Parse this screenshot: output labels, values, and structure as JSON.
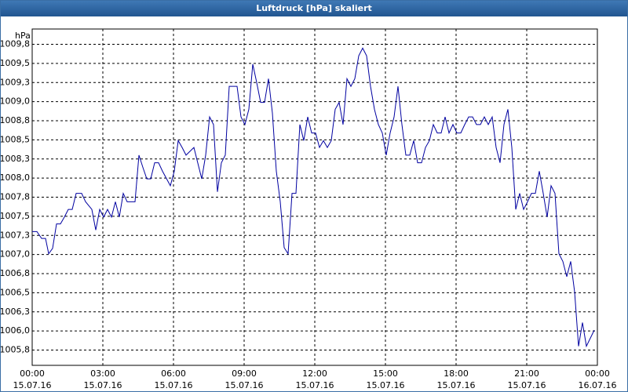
{
  "chart_data": {
    "type": "line",
    "title": "Luftdruck [hPa] skaliert",
    "y_label": "hPa",
    "x": [
      0,
      12,
      24,
      34,
      42,
      52,
      62,
      72,
      82,
      92,
      102,
      112,
      126,
      136,
      152,
      162,
      172,
      182,
      192,
      202,
      212,
      222,
      232,
      242,
      262,
      272,
      282,
      292,
      302,
      312,
      322,
      332,
      352,
      362,
      372,
      382,
      392,
      402,
      412,
      432,
      442,
      452,
      462,
      472,
      482,
      492,
      502,
      522,
      532,
      542,
      552,
      562,
      572,
      582,
      592,
      602,
      612,
      622,
      632,
      642,
      652,
      662,
      672,
      682,
      692,
      702,
      712,
      722,
      732,
      742,
      752,
      762,
      772,
      782,
      792,
      802,
      812,
      822,
      832,
      842,
      852,
      862,
      872,
      882,
      892,
      902,
      912,
      922,
      932,
      942,
      952,
      962,
      972,
      982,
      992,
      1002,
      1012,
      1022,
      1032,
      1042,
      1052,
      1062,
      1072,
      1082,
      1092,
      1102,
      1112,
      1122,
      1132,
      1142,
      1152,
      1162,
      1172,
      1182,
      1192,
      1202,
      1212,
      1222,
      1232,
      1242,
      1252,
      1262,
      1272,
      1282,
      1292,
      1302,
      1312,
      1322,
      1332,
      1342,
      1352,
      1362,
      1372,
      1382,
      1392,
      1402,
      1412,
      1432
    ],
    "values": [
      1007.3,
      1007.3,
      1007.21,
      1007.21,
      1007.01,
      1007.08,
      1007.4,
      1007.4,
      1007.49,
      1007.59,
      1007.59,
      1007.8,
      1007.8,
      1007.69,
      1007.59,
      1007.32,
      1007.59,
      1007.49,
      1007.59,
      1007.49,
      1007.69,
      1007.49,
      1007.8,
      1007.69,
      1007.69,
      1008.3,
      1008.14,
      1007.99,
      1007.99,
      1008.2,
      1008.2,
      1008.09,
      1007.9,
      1008.09,
      1008.49,
      1008.4,
      1008.3,
      1008.35,
      1008.4,
      1007.99,
      1008.3,
      1008.8,
      1008.7,
      1007.82,
      1008.2,
      1008.3,
      1009.2,
      1009.2,
      1008.8,
      1008.7,
      1008.9,
      1009.49,
      1009.25,
      1008.99,
      1008.99,
      1009.3,
      1008.85,
      1008.09,
      1007.69,
      1007.09,
      1007.01,
      1007.8,
      1007.8,
      1008.7,
      1008.49,
      1008.8,
      1008.59,
      1008.59,
      1008.4,
      1008.49,
      1008.4,
      1008.49,
      1008.9,
      1008.99,
      1008.7,
      1009.3,
      1009.2,
      1009.3,
      1009.6,
      1009.7,
      1009.6,
      1009.2,
      1008.9,
      1008.7,
      1008.59,
      1008.3,
      1008.59,
      1008.8,
      1009.2,
      1008.7,
      1008.3,
      1008.3,
      1008.49,
      1008.2,
      1008.2,
      1008.4,
      1008.49,
      1008.7,
      1008.59,
      1008.59,
      1008.8,
      1008.59,
      1008.7,
      1008.59,
      1008.59,
      1008.7,
      1008.8,
      1008.8,
      1008.7,
      1008.7,
      1008.8,
      1008.7,
      1008.8,
      1008.4,
      1008.2,
      1008.7,
      1008.9,
      1008.4,
      1007.59,
      1007.8,
      1007.59,
      1007.69,
      1007.8,
      1007.8,
      1008.09,
      1007.8,
      1007.49,
      1007.9,
      1007.8,
      1007.01,
      1006.91,
      1006.71,
      1006.91,
      1006.51,
      1005.8,
      1006.11,
      1005.8,
      1006.01
    ],
    "color": "#0000a0",
    "xlim": [
      0,
      1440
    ],
    "xticks": [
      {
        "value": 0,
        "label": "00:00\n15.07.16"
      },
      {
        "value": 180,
        "label": "03:00\n15.07.16"
      },
      {
        "value": 360,
        "label": "06:00\n15.07.16"
      },
      {
        "value": 540,
        "label": "09:00\n15.07.16"
      },
      {
        "value": 720,
        "label": "12:00\n15.07.16"
      },
      {
        "value": 900,
        "label": "15:00\n15.07.16"
      },
      {
        "value": 1080,
        "label": "18:00\n15.07.16"
      },
      {
        "value": 1260,
        "label": "21:00\n15.07.16"
      },
      {
        "value": 1440,
        "label": "00:00\n16.07.16"
      }
    ],
    "ylim": [
      1005.55,
      1009.95
    ],
    "yticks": [
      {
        "value": 1005.75,
        "label": "1005,8"
      },
      {
        "value": 1006.0,
        "label": "1006,0"
      },
      {
        "value": 1006.25,
        "label": "1006,3"
      },
      {
        "value": 1006.5,
        "label": "1006,5"
      },
      {
        "value": 1006.75,
        "label": "1006,8"
      },
      {
        "value": 1007.0,
        "label": "1007,0"
      },
      {
        "value": 1007.25,
        "label": "1007,3"
      },
      {
        "value": 1007.5,
        "label": "1007,5"
      },
      {
        "value": 1007.75,
        "label": "1007,8"
      },
      {
        "value": 1008.0,
        "label": "1008,0"
      },
      {
        "value": 1008.25,
        "label": "1008,3"
      },
      {
        "value": 1008.5,
        "label": "1008,5"
      },
      {
        "value": 1008.75,
        "label": "1008,8"
      },
      {
        "value": 1009.0,
        "label": "1009,0"
      },
      {
        "value": 1009.25,
        "label": "1009,3"
      },
      {
        "value": 1009.5,
        "label": "1009,5"
      },
      {
        "value": 1009.75,
        "label": "1009,8"
      }
    ],
    "grid": true
  }
}
